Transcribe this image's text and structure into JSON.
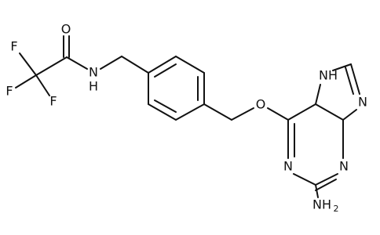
{
  "atoms": [
    "F",
    "F",
    "F",
    "O",
    "N",
    "H",
    "O",
    "N",
    "N",
    "NH",
    "N",
    "NH",
    "2"
  ]
}
